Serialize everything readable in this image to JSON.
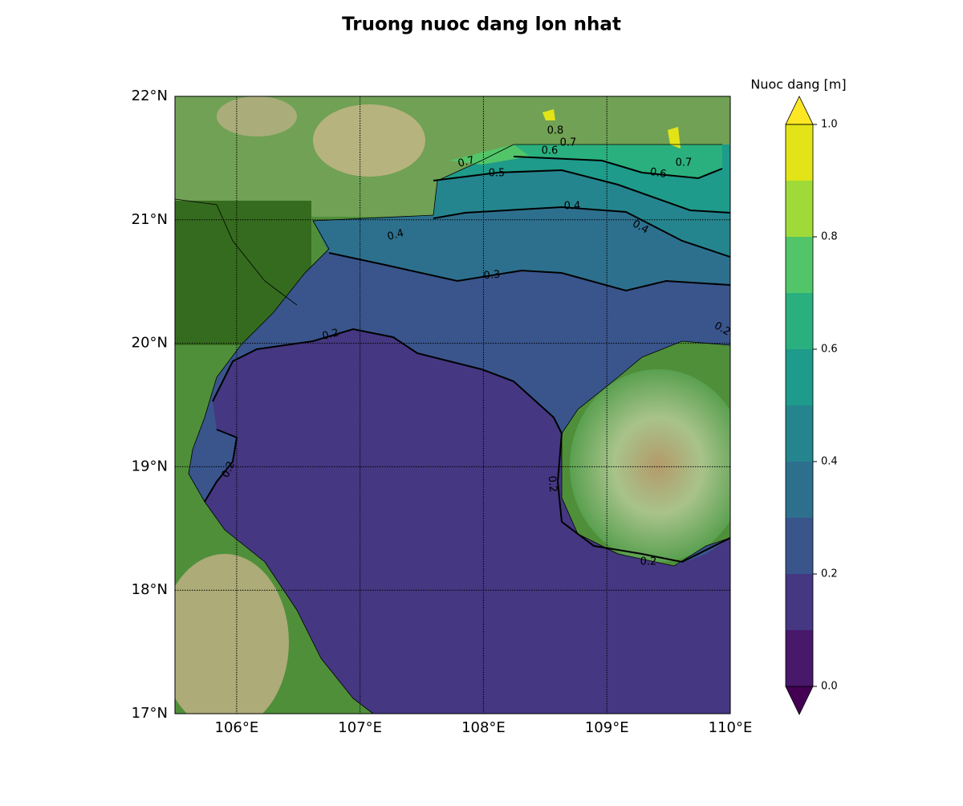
{
  "map": {
    "title": "Truong nuoc dang lon nhat",
    "extent": {
      "lon": [
        105.5,
        110
      ],
      "lat": [
        17,
        22
      ]
    },
    "lon_ticks": [
      {
        "value": 106,
        "label": "106°E"
      },
      {
        "value": 107,
        "label": "107°E"
      },
      {
        "value": 108,
        "label": "108°E"
      },
      {
        "value": 109,
        "label": "109°E"
      },
      {
        "value": 110,
        "label": "110°E"
      }
    ],
    "lat_ticks": [
      {
        "value": 17,
        "label": "17°N"
      },
      {
        "value": 18,
        "label": "18°N"
      },
      {
        "value": 19,
        "label": "19°N"
      },
      {
        "value": 20,
        "label": "20°N"
      },
      {
        "value": 21,
        "label": "21°N"
      },
      {
        "value": 22,
        "label": "22°N"
      }
    ],
    "colorbar": {
      "label": "Nuoc dang [m]",
      "lim": [
        0,
        1
      ],
      "ticks": [
        {
          "value": 0,
          "label": "0.0"
        },
        0.2,
        0.4,
        0.6,
        0.8,
        {
          "value": 1,
          "label": "1.0"
        }
      ],
      "levels": [
        0,
        0.1,
        0.2,
        0.3,
        0.4,
        0.5,
        0.6,
        0.7,
        0.8,
        0.9,
        1
      ],
      "colors": [
        "#48186a",
        "#453781",
        "#39558c",
        "#2d708e",
        "#25858e",
        "#1e9b8a",
        "#2ab07f",
        "#52c569",
        "#a0da39",
        "#e2e418"
      ],
      "under_color": "#440154",
      "over_color": "#fde725"
    },
    "contour_labels": [
      0.8,
      0.7,
      0.6,
      0.7,
      0.5,
      0.6,
      0.7,
      0.4,
      0.4,
      0.4,
      0.3,
      0.2,
      0.2,
      0.2,
      0.2,
      0.2
    ]
  }
}
